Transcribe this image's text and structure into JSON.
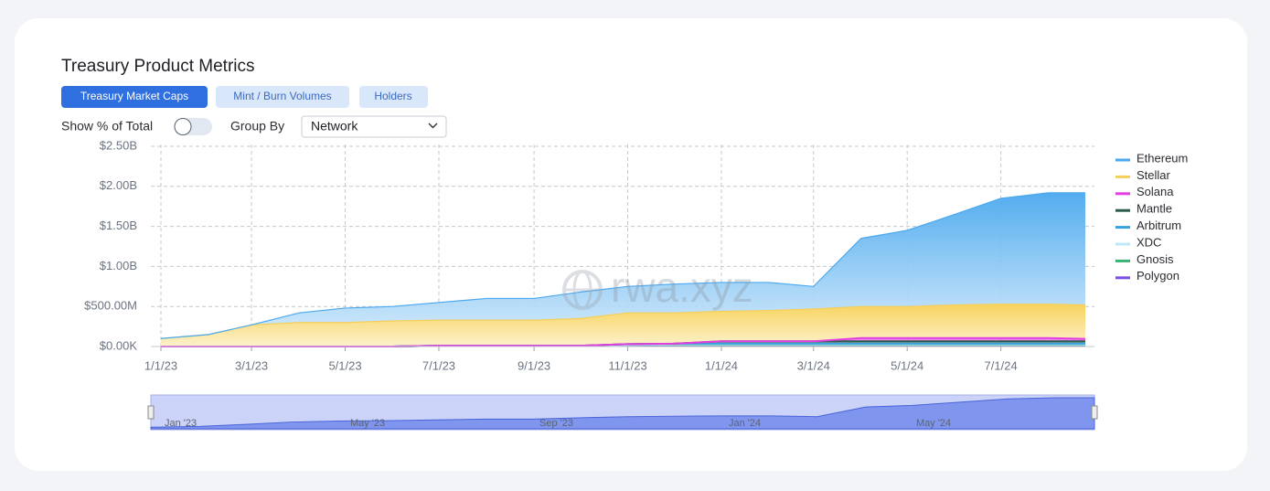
{
  "header": {
    "title": "Treasury Product Metrics"
  },
  "tabs": [
    "Treasury Market Caps",
    "Mint / Burn Volumes",
    "Holders"
  ],
  "controls": {
    "toggle_label": "Show % of Total",
    "group_by_label": "Group By",
    "group_by_value": "Network"
  },
  "watermark": "rwa.xyz",
  "navigator": {
    "labels": [
      "Jan '23",
      "May '23",
      "Sep '23",
      "Jan '24",
      "May '24"
    ]
  },
  "chart_data": {
    "type": "area",
    "stacked": true,
    "grid": true,
    "legend": "right",
    "x": [
      "2023-01-01",
      "2023-02-01",
      "2023-03-01",
      "2023-04-01",
      "2023-05-01",
      "2023-06-01",
      "2023-07-01",
      "2023-08-01",
      "2023-09-01",
      "2023-10-01",
      "2023-11-01",
      "2023-12-01",
      "2024-01-01",
      "2024-02-01",
      "2024-03-01",
      "2024-04-01",
      "2024-05-01",
      "2024-06-01",
      "2024-07-01",
      "2024-08-01",
      "2024-08-25"
    ],
    "xlim": [
      "2023-01-01",
      "2024-08-25"
    ],
    "xticks": [
      {
        "value": "2023-01-01",
        "label": "1/1/23"
      },
      {
        "value": "2023-03-01",
        "label": "3/1/23"
      },
      {
        "value": "2023-05-01",
        "label": "5/1/23"
      },
      {
        "value": "2023-07-01",
        "label": "7/1/23"
      },
      {
        "value": "2023-09-01",
        "label": "9/1/23"
      },
      {
        "value": "2023-11-01",
        "label": "11/1/23"
      },
      {
        "value": "2024-01-01",
        "label": "1/1/24"
      },
      {
        "value": "2024-03-01",
        "label": "3/1/24"
      },
      {
        "value": "2024-05-01",
        "label": "5/1/24"
      },
      {
        "value": "2024-07-01",
        "label": "7/1/24"
      }
    ],
    "ylim": [
      0,
      2500000000
    ],
    "yticks": [
      {
        "value": 0,
        "label": "$0.00K"
      },
      {
        "value": 500000000,
        "label": "$500.00M"
      },
      {
        "value": 1000000000,
        "label": "$1.00B"
      },
      {
        "value": 1500000000,
        "label": "$1.50B"
      },
      {
        "value": 2000000000,
        "label": "$2.00B"
      },
      {
        "value": 2500000000,
        "label": "$2.50B"
      }
    ],
    "series": [
      {
        "name": "Ethereum",
        "color": "#4aa8ee",
        "values": [
          0,
          0,
          0,
          120000000,
          180000000,
          180000000,
          220000000,
          270000000,
          270000000,
          330000000,
          330000000,
          360000000,
          360000000,
          350000000,
          280000000,
          850000000,
          950000000,
          1130000000,
          1320000000,
          1390000000,
          1400000000
        ]
      },
      {
        "name": "Stellar",
        "color": "#f5cf5a",
        "values": [
          100000000,
          150000000,
          270000000,
          300000000,
          300000000,
          320000000,
          320000000,
          320000000,
          320000000,
          340000000,
          390000000,
          385000000,
          375000000,
          385000000,
          405000000,
          395000000,
          395000000,
          415000000,
          425000000,
          425000000,
          425000000
        ]
      },
      {
        "name": "Solana",
        "color": "#e13fe0",
        "values": [
          0,
          0,
          0,
          0,
          0,
          0,
          0,
          0,
          0,
          0,
          0,
          0,
          0,
          0,
          0,
          40000000,
          40000000,
          40000000,
          40000000,
          40000000,
          30000000
        ]
      },
      {
        "name": "Mantle",
        "color": "#2d5c4c",
        "values": [
          0,
          0,
          0,
          0,
          0,
          0,
          0,
          0,
          0,
          0,
          0,
          0,
          30000000,
          30000000,
          30000000,
          30000000,
          30000000,
          30000000,
          30000000,
          30000000,
          30000000
        ]
      },
      {
        "name": "Arbitrum",
        "color": "#36a1dc",
        "values": [
          0,
          0,
          0,
          0,
          0,
          0,
          0,
          0,
          0,
          0,
          10000000,
          10000000,
          10000000,
          10000000,
          10000000,
          10000000,
          10000000,
          10000000,
          10000000,
          10000000,
          10000000
        ]
      },
      {
        "name": "XDC",
        "color": "#bfe8f7",
        "values": [
          0,
          0,
          0,
          0,
          0,
          0,
          0,
          0,
          0,
          0,
          0,
          5000000,
          5000000,
          5000000,
          5000000,
          5000000,
          5000000,
          5000000,
          5000000,
          5000000,
          5000000
        ]
      },
      {
        "name": "Gnosis",
        "color": "#3bb273",
        "values": [
          0,
          0,
          0,
          0,
          0,
          0,
          0,
          0,
          0,
          0,
          10000000,
          10000000,
          10000000,
          10000000,
          10000000,
          10000000,
          10000000,
          10000000,
          10000000,
          10000000,
          10000000
        ]
      },
      {
        "name": "Polygon",
        "color": "#7a4fe0",
        "values": [
          0,
          0,
          0,
          0,
          0,
          0,
          10000000,
          10000000,
          10000000,
          10000000,
          10000000,
          10000000,
          10000000,
          10000000,
          10000000,
          10000000,
          10000000,
          10000000,
          10000000,
          10000000,
          10000000
        ]
      }
    ]
  }
}
